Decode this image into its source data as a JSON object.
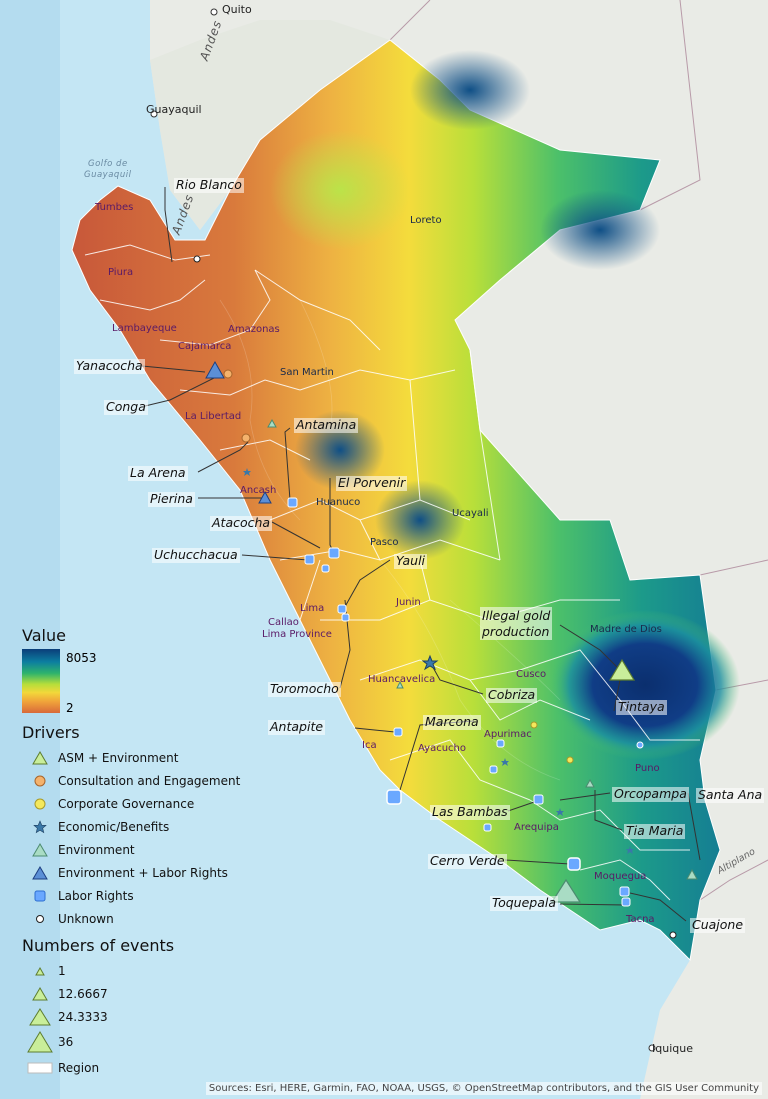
{
  "cities": {
    "quito": "Quito",
    "guayaquil": "Guayaquil",
    "iquique": "Iquique"
  },
  "sea_labels": {
    "gulf_line1": "Golfo de",
    "gulf_line2": "Guayaquil"
  },
  "terrain_labels": {
    "andes_north": "Andes",
    "andes_south": "Andes",
    "altiplano": "Altiplano"
  },
  "regions": {
    "tumbes": "Tumbes",
    "piura": "Piura",
    "lambayeque": "Lambayeque",
    "cajamarca": "Cajamarca",
    "amazonas": "Amazonas",
    "loreto": "Loreto",
    "san_martin": "San Martin",
    "la_libertad": "La Libertad",
    "ancash": "Ancash",
    "huanuco": "Huanuco",
    "ucayali": "Ucayali",
    "pasco": "Pasco",
    "junin": "Junin",
    "lima": "Lima",
    "callao": "Callao",
    "lima_province": "Lima Province",
    "madre_de_dios": "Madre de Dios",
    "cusco": "Cusco",
    "huancavelica": "Huancavelica",
    "ica": "Ica",
    "ayacucho": "Ayacucho",
    "apurimac": "Apurimac",
    "puno": "Puno",
    "arequipa": "Arequipa",
    "moquegua": "Moquegua",
    "tacna": "Tacna"
  },
  "mines": {
    "rio_blanco": "Rio Blanco",
    "yanacocha": "Yanacocha",
    "conga": "Conga",
    "antamina": "Antamina",
    "la_arena": "La Arena",
    "el_porvenir": "El Porvenir",
    "pierina": "Pierina",
    "atacocha": "Atacocha",
    "uchucchacua": "Uchucchacua",
    "yauli": "Yauli",
    "illegal_gold": "Illegal gold\nproduction",
    "cobriza": "Cobriza",
    "toromocho": "Toromocho",
    "tintaya": "Tintaya",
    "antapite": "Antapite",
    "marcona": "Marcona",
    "las_bambas": "Las Bambas",
    "orcopampa": "Orcopampa",
    "santa_ana": "Santa Ana",
    "tia_maria": "Tia Maria",
    "cerro_verde": "Cerro Verde",
    "toquepala": "Toquepala",
    "cuajone": "Cuajone"
  },
  "legend": {
    "value_title": "Value",
    "value_max": "8053",
    "value_min": "2",
    "drivers_title": "Drivers",
    "drivers": [
      {
        "label": "ASM + Environment",
        "icon": "triangle-icon",
        "color": "#c9ee9a"
      },
      {
        "label": "Consultation and Engagement",
        "icon": "circle-icon",
        "color": "#f4b26c"
      },
      {
        "label": "Corporate Governance",
        "icon": "circle-icon",
        "color": "#f4e85c"
      },
      {
        "label": "Economic/Benefits",
        "icon": "star-icon",
        "color": "#3a78a8"
      },
      {
        "label": "Environment",
        "icon": "triangle-icon",
        "color": "#a9dcc4"
      },
      {
        "label": "Environment + Labor Rights",
        "icon": "triangle-icon",
        "color": "#5b8fd6"
      },
      {
        "label": "Labor Rights",
        "icon": "square-icon",
        "color": "#6aa8ff"
      },
      {
        "label": "Unknown",
        "icon": "circle-icon",
        "color": "#ffffff"
      }
    ],
    "events_title": "Numbers of events",
    "events": [
      "1",
      "12.6667",
      "24.3333",
      "36"
    ],
    "region_label": "Region"
  },
  "attribution": "Sources: Esri, HERE, Garmin, FAO, NOAA, USGS, © OpenStreetMap contributors, and the GIS User Community"
}
